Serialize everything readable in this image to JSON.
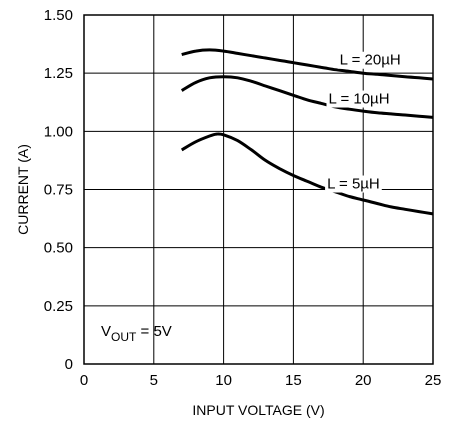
{
  "chart_data": {
    "type": "line",
    "xlabel": "INPUT VOLTAGE (V)",
    "ylabel": "CURRENT (A)",
    "xlim": [
      0,
      25
    ],
    "ylim": [
      0,
      1.5
    ],
    "x_ticks": [
      "0",
      "5",
      "10",
      "15",
      "20",
      "25"
    ],
    "y_ticks": [
      "0",
      "0.25",
      "0.50",
      "0.75",
      "1.00",
      "1.25",
      "1.50"
    ],
    "grid": true,
    "series": [
      {
        "name": "L = 20µH",
        "x": [
          7,
          8,
          9,
          10,
          11,
          12,
          13,
          14,
          15,
          16,
          17,
          18,
          19,
          20,
          21,
          22,
          23,
          24,
          25
        ],
        "y": [
          1.33,
          1.345,
          1.35,
          1.345,
          1.335,
          1.325,
          1.315,
          1.305,
          1.295,
          1.285,
          1.275,
          1.265,
          1.258,
          1.25,
          1.245,
          1.24,
          1.235,
          1.23,
          1.225
        ]
      },
      {
        "name": "L = 10µH",
        "x": [
          7,
          8,
          9,
          10,
          11,
          12,
          13,
          14,
          15,
          16,
          17,
          18,
          19,
          20,
          21,
          22,
          23,
          24,
          25
        ],
        "y": [
          1.175,
          1.21,
          1.23,
          1.235,
          1.23,
          1.215,
          1.195,
          1.175,
          1.155,
          1.135,
          1.12,
          1.105,
          1.095,
          1.087,
          1.08,
          1.075,
          1.07,
          1.065,
          1.06
        ]
      },
      {
        "name": "L = 5µH",
        "x": [
          7,
          8,
          9,
          9.5,
          10,
          11,
          12,
          13,
          14,
          15,
          16,
          17,
          18,
          19,
          20,
          21,
          22,
          23,
          24,
          25
        ],
        "y": [
          0.92,
          0.955,
          0.98,
          0.988,
          0.985,
          0.96,
          0.92,
          0.875,
          0.84,
          0.81,
          0.785,
          0.76,
          0.74,
          0.72,
          0.705,
          0.69,
          0.675,
          0.665,
          0.655,
          0.645
        ]
      }
    ],
    "annotation": {
      "prefix": "V",
      "subscript": "OUT",
      "suffix": " = 5V"
    }
  }
}
